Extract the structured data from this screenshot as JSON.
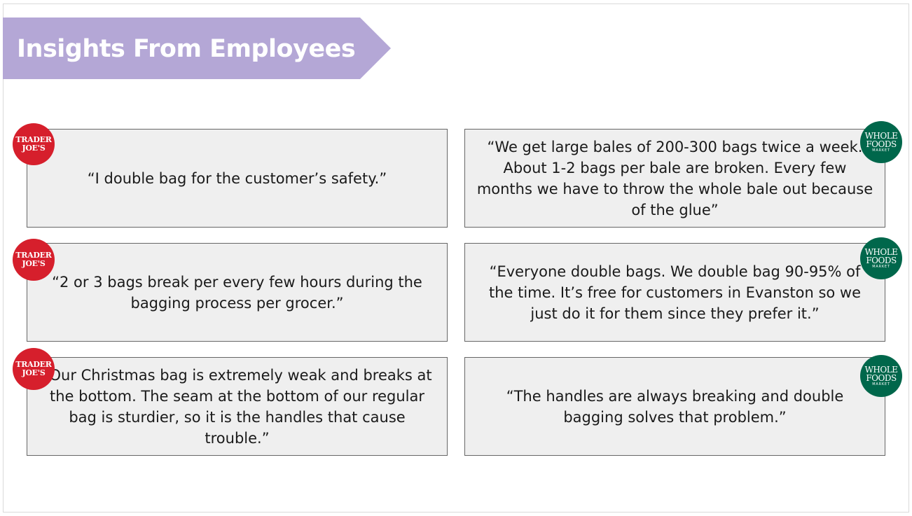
{
  "title": "Insights From Employees",
  "logos": {
    "trader_joes": {
      "line1": "TRADER",
      "line2": "JOE'S"
    },
    "whole_foods": {
      "line1": "WHOLE",
      "line2": "FOODS",
      "line3": "MARKET"
    }
  },
  "colors": {
    "banner": "#b4a7d6",
    "card_bg": "#efefef",
    "trader_joes_red": "#d61f2c",
    "whole_foods_green": "#00674b"
  },
  "quotes": {
    "left": [
      "“I double bag for the customer’s safety.”",
      "“2 or 3 bags break per every few hours during the bagging process per grocer.”",
      "“Our Christmas bag is extremely weak and breaks at the bottom. The seam at the bottom of our regular bag is sturdier, so it is the handles that cause trouble.”"
    ],
    "right": [
      "“We get large bales of 200-300 bags twice a week. About 1-2 bags per bale are broken. Every few months we have to throw the whole bale out because of the glue”",
      "“Everyone double bags. We double bag 90-95% of the time. It’s free for customers in Evanston so we just do it for them since they prefer it.”",
      "“The handles are always breaking and double bagging solves that problem.”"
    ]
  }
}
